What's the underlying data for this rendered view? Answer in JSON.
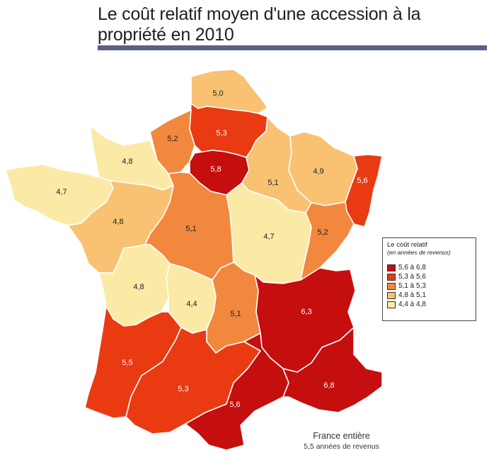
{
  "title": "Le coût relatif moyen d'une accession à la propriété en 2010",
  "colors": {
    "bin_1": "#fbeaa6",
    "bin_2": "#f8c272",
    "bin_3": "#f2883e",
    "bin_4": "#ea3a12",
    "bin_5": "#c50e0e"
  },
  "regions": [
    {
      "label": "5,0",
      "bin": 2
    },
    {
      "label": "5,3",
      "bin": 4
    },
    {
      "label": "5,2",
      "bin": 3
    },
    {
      "label": "4,8",
      "bin": 1
    },
    {
      "label": "5,8",
      "bin": 5
    },
    {
      "label": "5,1",
      "bin": 2
    },
    {
      "label": "4,9",
      "bin": 2
    },
    {
      "label": "5,6",
      "bin": 4
    },
    {
      "label": "4,7",
      "bin": 1
    },
    {
      "label": "4,8",
      "bin": 2
    },
    {
      "label": "5,1",
      "bin": 3
    },
    {
      "label": "4,7",
      "bin": 1
    },
    {
      "label": "5,2",
      "bin": 3
    },
    {
      "label": "4,8",
      "bin": 1
    },
    {
      "label": "4,4",
      "bin": 1
    },
    {
      "label": "5,1",
      "bin": 3
    },
    {
      "label": "6,3",
      "bin": 5
    },
    {
      "label": "5,5",
      "bin": 4
    },
    {
      "label": "5,3",
      "bin": 4
    },
    {
      "label": "5,6",
      "bin": 5
    },
    {
      "label": "6,8",
      "bin": 5
    }
  ],
  "legend": {
    "title": "Le coût relatif",
    "subtitle": "(en années de revenus)",
    "items": [
      {
        "label": "5,6 à 6,8",
        "color": "#c50e0e"
      },
      {
        "label": "5,3 à 5,6",
        "color": "#ea3a12"
      },
      {
        "label": "5,1 à 5,3",
        "color": "#f2883e"
      },
      {
        "label": "4,8 à 5,1",
        "color": "#f8c272"
      },
      {
        "label": "4,4 à 4,8",
        "color": "#fbeaa6"
      }
    ]
  },
  "footer": {
    "line1": "France entière",
    "line2": "5,5 années de revenus"
  }
}
